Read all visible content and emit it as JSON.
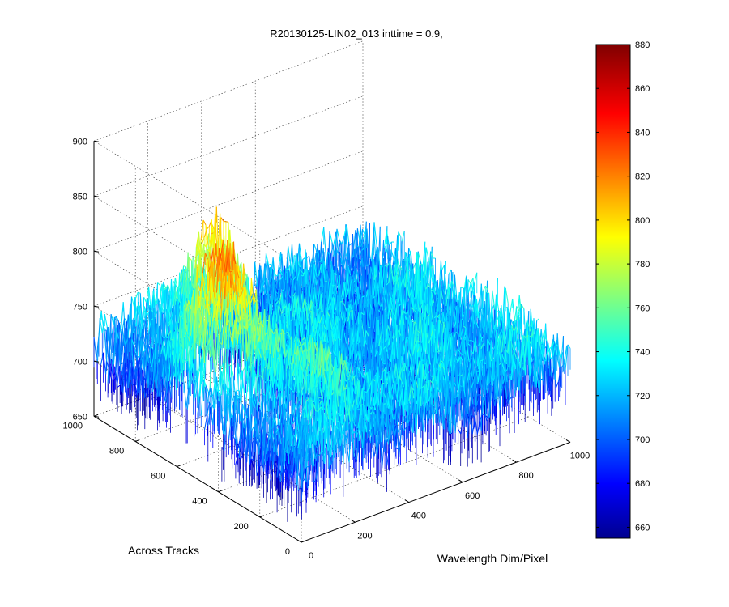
{
  "chart_data": {
    "type": "surface",
    "title": "R20130125-LIN02_013 inttime = 0.9,",
    "xlabel": "Wavelength Dim/Pixel",
    "ylabel": "Across Tracks",
    "zlabel": "",
    "x_ticks": [
      "0",
      "200",
      "400",
      "600",
      "800",
      "1000"
    ],
    "y_ticks": [
      "0",
      "200",
      "400",
      "600",
      "800",
      "1000"
    ],
    "z_ticks": [
      "650",
      "700",
      "750",
      "800",
      "850",
      "900"
    ],
    "xlim": [
      0,
      1000
    ],
    "ylim": [
      0,
      1000
    ],
    "zlim": [
      650,
      900
    ],
    "grid": true,
    "colormap": "jet",
    "colorbar": {
      "position": "right",
      "range": [
        655,
        880
      ],
      "ticks": [
        "660",
        "680",
        "700",
        "720",
        "740",
        "760",
        "780",
        "800",
        "820",
        "840",
        "860",
        "880"
      ]
    },
    "surface": {
      "x_extent": [
        0,
        1000
      ],
      "y_extent": [
        0,
        1000
      ],
      "baseline": 725,
      "features": [
        {
          "x": [
            0,
            420
          ],
          "y": [
            380,
            860
          ],
          "peak": 845
        },
        {
          "x": [
            0,
            150
          ],
          "y": [
            0,
            1000
          ],
          "level": 715
        },
        {
          "x": [
            420,
            1000
          ],
          "y": [
            700,
            1000
          ],
          "level": 720
        }
      ],
      "max_value": 855,
      "min_value": 670
    }
  }
}
